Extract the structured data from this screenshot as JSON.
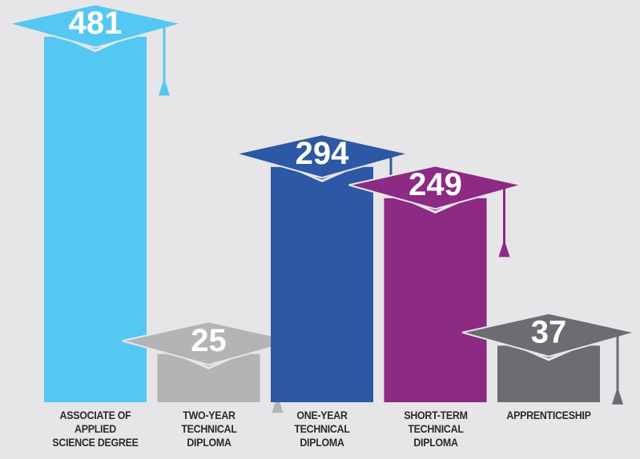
{
  "chart_data": {
    "type": "bar",
    "categories": [
      "ASSOCIATE OF\nAPPLIED\nSCIENCE DEGREE",
      "TWO-YEAR\nTECHNICAL\nDIPLOMA",
      "ONE-YEAR\nTECHNICAL\nDIPLOMA",
      "SHORT-TERM\nTECHNICAL\nDIPLOMA",
      "APPRENTICESHIP"
    ],
    "values": [
      481,
      25,
      294,
      249,
      37
    ],
    "colors": [
      "#54c8f2",
      "#b4b4b6",
      "#2d58a6",
      "#8c2a84",
      "#6c6d70"
    ]
  }
}
